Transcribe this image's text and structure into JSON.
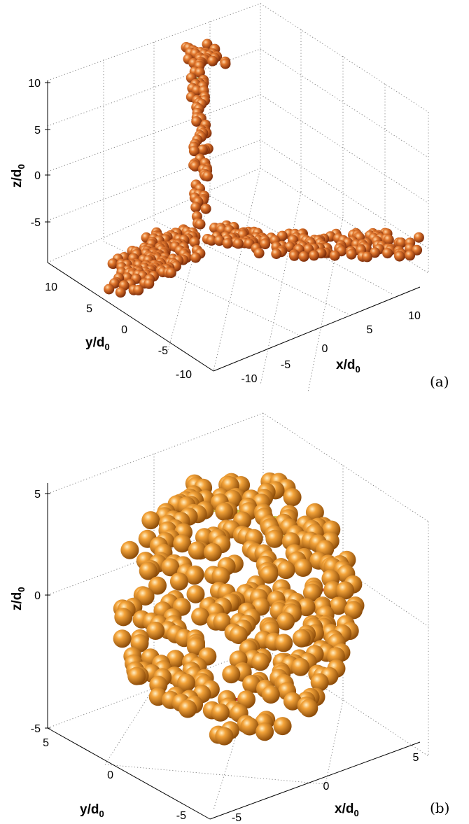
{
  "panels": [
    {
      "id": "a",
      "label": "(a)",
      "axes": {
        "x": {
          "label": "x/d",
          "sub": "0",
          "ticks": [
            "-10",
            "-5",
            "0",
            "5",
            "10"
          ]
        },
        "y": {
          "label": "y/d",
          "sub": "0",
          "ticks": [
            "10",
            "5",
            "0",
            "-5",
            "-10"
          ]
        },
        "z": {
          "label": "z/d",
          "sub": "0",
          "ticks": [
            "10",
            "5",
            "0",
            "-5"
          ]
        }
      }
    },
    {
      "id": "b",
      "label": "(b)",
      "axes": {
        "x": {
          "label": "x/d",
          "sub": "0",
          "ticks": [
            "-5",
            "0",
            "5"
          ]
        },
        "y": {
          "label": "y/d",
          "sub": "0",
          "ticks": [
            "5",
            "0",
            "-5"
          ]
        },
        "z": {
          "label": "z/d",
          "sub": "0",
          "ticks": [
            "5",
            "0",
            "-5"
          ]
        }
      }
    }
  ],
  "colors": {
    "sphere_a": "#c2501c",
    "sphere_b": "#e08a1e",
    "bond_upper": "#c8c040",
    "bond_lower": "#c83030",
    "grid": "#7a7a7a"
  }
}
